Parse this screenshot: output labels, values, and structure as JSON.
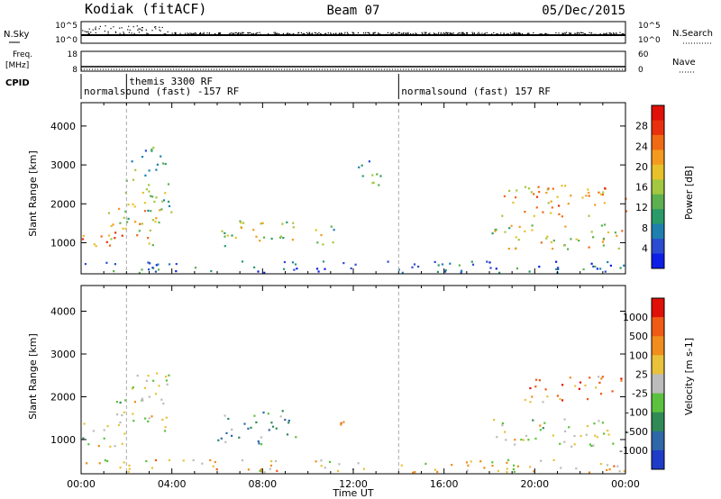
{
  "header": {
    "station": "Kodiak (fitACF)",
    "beam": "Beam 07",
    "date": "05/Dec/2015"
  },
  "strip": {
    "nsky_label": "N.Sky",
    "nsearch_label": "N.Search",
    "nsky_ticks": [
      "10^5",
      "10^0"
    ],
    "nsearch_ticks": [
      "10^5",
      "10^0"
    ],
    "freq_label_1": "Freq.",
    "freq_label_2": "[MHz]",
    "freq_ticks": [
      "18",
      "8"
    ],
    "nave_label": "Nave",
    "nave_ticks": [
      "60",
      "0"
    ],
    "cpid_label": "CPID",
    "cpid_segments": [
      {
        "label": "normalsound (fast) -157 RF",
        "start_h": 0,
        "end_h": 14
      },
      {
        "label": "themis 3300 RF",
        "start_h": 2,
        "end_h": 14
      },
      {
        "label": "normalsound (fast) 157 RF",
        "start_h": 14,
        "end_h": 24
      }
    ]
  },
  "chart_data": [
    {
      "type": "heatmap",
      "ylabel": "Slant Range [km]",
      "xlim": [
        0,
        24
      ],
      "ylim": [
        200,
        4600
      ],
      "yticks": [
        "1000",
        "2000",
        "3000",
        "4000"
      ],
      "colorbar": {
        "label": "Power [dB]",
        "ticks": [
          "4",
          "8",
          "12",
          "16",
          "20",
          "24",
          "28"
        ],
        "colors": [
          "#0d1ee6",
          "#2b4bd1",
          "#1f7fae",
          "#2a9a69",
          "#5cb04f",
          "#a3c740",
          "#e7c12a",
          "#f59a1e",
          "#f06a14",
          "#e8300e",
          "#e01008"
        ]
      },
      "features": [
        {
          "t0": 0.0,
          "t1": 1.9,
          "r0": 850,
          "r1": 1300,
          "level": 0.75
        },
        {
          "t0": 1.0,
          "t1": 3.5,
          "r0": 950,
          "r1": 1900,
          "level": 0.62
        },
        {
          "t0": 1.8,
          "t1": 4.0,
          "r0": 1600,
          "r1": 2700,
          "level": 0.45
        },
        {
          "t0": 2.2,
          "t1": 3.8,
          "r0": 2700,
          "r1": 3500,
          "level": 0.35
        },
        {
          "t0": 6.0,
          "t1": 9.5,
          "r0": 900,
          "r1": 1600,
          "level": 0.5
        },
        {
          "t0": 10.3,
          "t1": 11.3,
          "r0": 950,
          "r1": 1600,
          "level": 0.45
        },
        {
          "t0": 12.2,
          "t1": 13.2,
          "r0": 2500,
          "r1": 3400,
          "level": 0.3
        },
        {
          "t0": 18.0,
          "t1": 24.0,
          "r0": 850,
          "r1": 1500,
          "level": 0.55
        },
        {
          "t0": 18.5,
          "t1": 24.0,
          "r0": 1700,
          "r1": 2500,
          "level": 0.68
        },
        {
          "t0": 0.0,
          "t1": 24.0,
          "r0": 250,
          "r1": 550,
          "level": 0.2
        }
      ]
    },
    {
      "type": "heatmap",
      "ylabel": "Slant Range [km]",
      "xlabel": "Time UT",
      "xlim": [
        0,
        24
      ],
      "ylim": [
        200,
        4600
      ],
      "xticks": [
        "00:00",
        "04:00",
        "08:00",
        "12:00",
        "16:00",
        "20:00",
        "00:00"
      ],
      "yticks": [
        "1000",
        "2000",
        "3000",
        "4000"
      ],
      "colorbar": {
        "label": "Velocity [m s-1]",
        "ticks": [
          "1000",
          "500",
          "100",
          "25",
          "-25",
          "-100",
          "-500",
          "-1000"
        ],
        "colors": [
          "#1e3cc8",
          "#2e68a8",
          "#2f8a55",
          "#5cc13e",
          "#bcbcbc",
          "#e8c23a",
          "#f08d1c",
          "#ef5a14",
          "#e01008"
        ]
      },
      "features": [
        {
          "t0": 0.0,
          "t1": 2.0,
          "r0": 850,
          "r1": 1400,
          "level": 0.5
        },
        {
          "t0": 1.5,
          "t1": 4.0,
          "r0": 1200,
          "r1": 2600,
          "level": 0.5
        },
        {
          "t0": 6.0,
          "t1": 9.5,
          "r0": 900,
          "r1": 1700,
          "level": 0.3
        },
        {
          "t0": 11.0,
          "t1": 11.6,
          "r0": 1100,
          "r1": 1600,
          "level": 0.75
        },
        {
          "t0": 18.0,
          "t1": 24.0,
          "r0": 850,
          "r1": 1500,
          "level": 0.5
        },
        {
          "t0": 19.5,
          "t1": 24.0,
          "r0": 1900,
          "r1": 2500,
          "level": 0.75
        },
        {
          "t0": 0.0,
          "t1": 24.0,
          "r0": 250,
          "r1": 550,
          "level": 0.6
        }
      ]
    }
  ]
}
